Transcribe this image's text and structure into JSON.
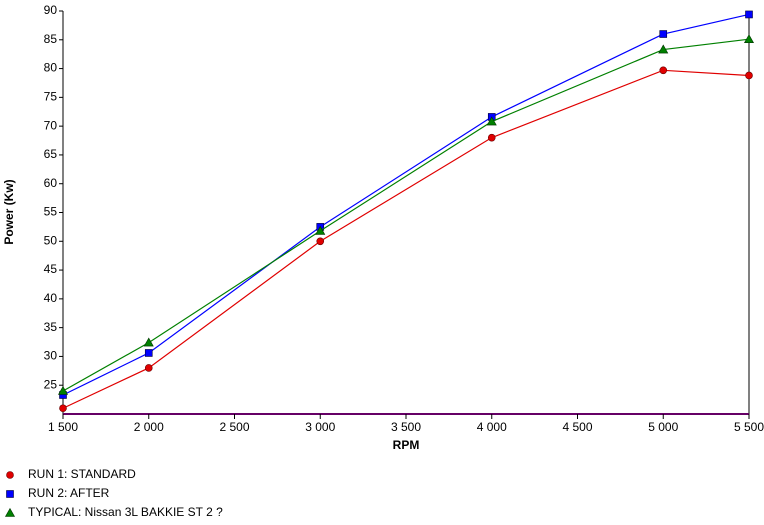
{
  "chart_data": {
    "type": "line",
    "x_label": "RPM",
    "y_label": "Power (Kw)",
    "x": [
      1500,
      2000,
      3000,
      4000,
      5000,
      5500
    ],
    "series": [
      {
        "name": "RUN 1: STANDARD",
        "color": "#e00000",
        "marker": "circle",
        "values": [
          21,
          28,
          50,
          68,
          79.7,
          78.8
        ]
      },
      {
        "name": "RUN 2: AFTER",
        "color": "#0000ff",
        "marker": "square",
        "values": [
          23.3,
          30.6,
          52.5,
          71.6,
          86,
          89.4
        ]
      },
      {
        "name": "TYPICAL: Nissan 3L BAKKIE  ST 2 ?",
        "color": "#008000",
        "marker": "triangle",
        "values": [
          24,
          32.4,
          51.8,
          70.8,
          83.3,
          85.1
        ]
      }
    ],
    "xlim": [
      1500,
      5500
    ],
    "xticks": [
      {
        "value": 1500,
        "label": "1 500"
      },
      {
        "value": 2000,
        "label": "2 000"
      },
      {
        "value": 2500,
        "label": "2 500"
      },
      {
        "value": 3000,
        "label": "3 000"
      },
      {
        "value": 3500,
        "label": "3 500"
      },
      {
        "value": 4000,
        "label": "4 000"
      },
      {
        "value": 4500,
        "label": "4 500"
      },
      {
        "value": 5000,
        "label": "5 000"
      },
      {
        "value": 5500,
        "label": "5 500"
      }
    ],
    "ylim": [
      20,
      90
    ],
    "yticks": [
      25,
      30,
      35,
      40,
      45,
      50,
      55,
      60,
      65,
      70,
      75,
      80,
      85,
      90
    ]
  }
}
